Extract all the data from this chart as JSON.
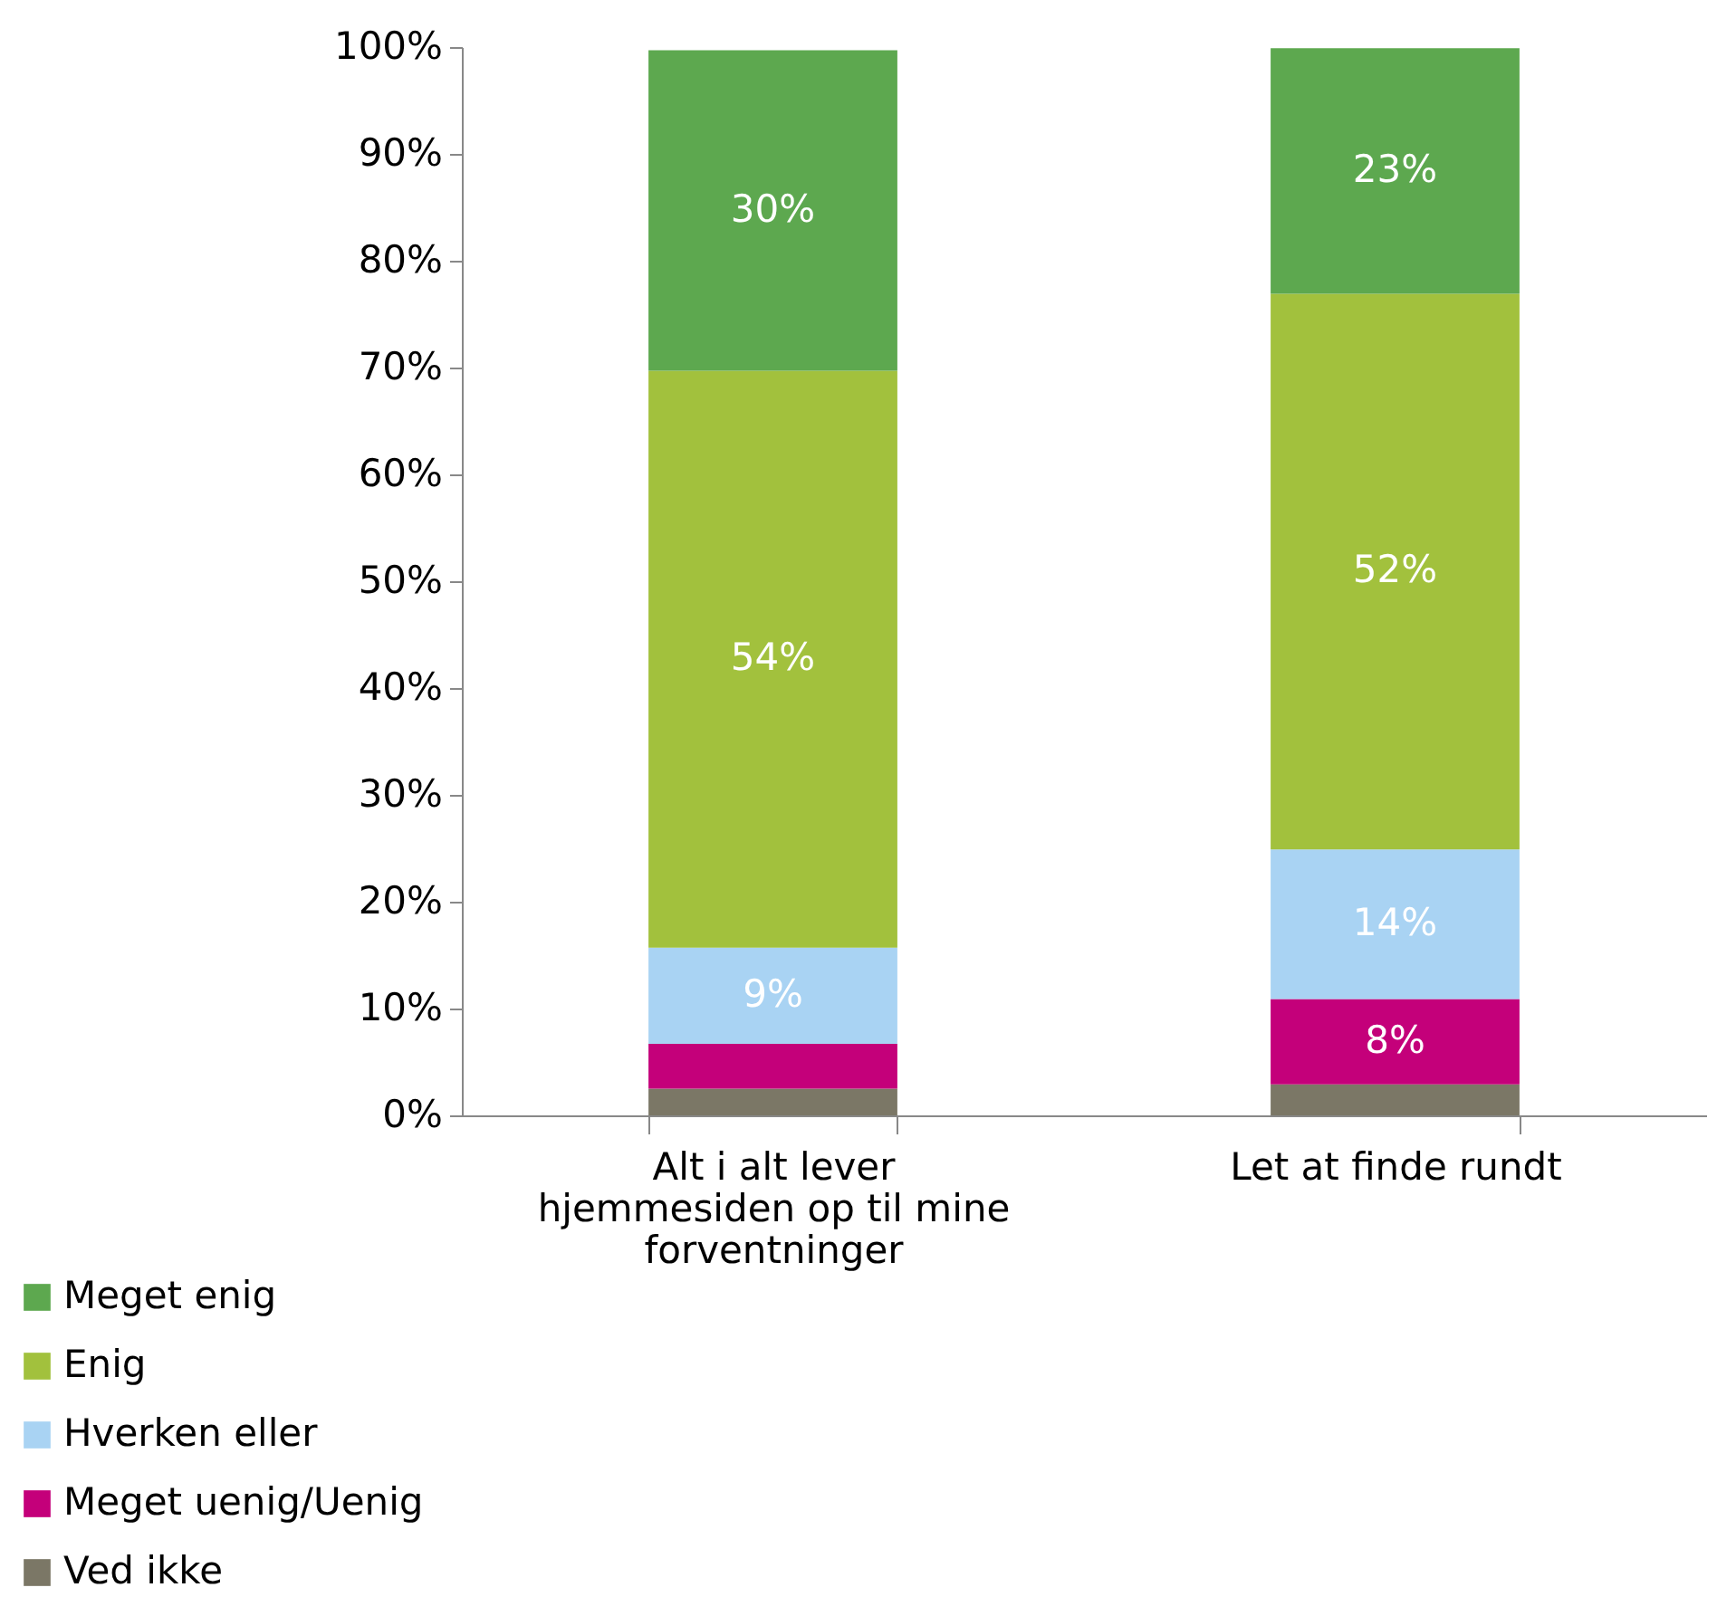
{
  "chart_data": {
    "type": "bar",
    "stacked": true,
    "categories": [
      "Alt i alt lever hjemmesiden op til mine forventninger",
      "Let at finde rundt"
    ],
    "series": [
      {
        "name": "Ved ikke",
        "color": "#7b7766",
        "values": [
          2.5,
          2.9
        ],
        "value_labels": [
          null,
          null
        ]
      },
      {
        "name": "Meget uenig/Uenig",
        "color": "#c4007a",
        "values": [
          4.2,
          8
        ],
        "value_labels": [
          null,
          "8%"
        ]
      },
      {
        "name": "Hverken eller",
        "color": "#a9d3f3",
        "values": [
          9,
          14
        ],
        "value_labels": [
          "9%",
          "14%"
        ]
      },
      {
        "name": "Enig",
        "color": "#a2c13d",
        "values": [
          54,
          52
        ],
        "value_labels": [
          "54%",
          "52%"
        ]
      },
      {
        "name": "Meget enig",
        "color": "#5da84f",
        "values": [
          30,
          23
        ],
        "value_labels": [
          "30%",
          "23%"
        ]
      }
    ],
    "ylim": [
      0,
      100
    ],
    "yticks": [
      {
        "value": 0,
        "label": "0%"
      },
      {
        "value": 10,
        "label": "10%"
      },
      {
        "value": 20,
        "label": "20%"
      },
      {
        "value": 30,
        "label": "30%"
      },
      {
        "value": 40,
        "label": "40%"
      },
      {
        "value": 50,
        "label": "50%"
      },
      {
        "value": 60,
        "label": "60%"
      },
      {
        "value": 70,
        "label": "70%"
      },
      {
        "value": 80,
        "label": "80%"
      },
      {
        "value": 90,
        "label": "90%"
      },
      {
        "value": 100,
        "label": "100%"
      }
    ],
    "grid": false,
    "legend": "bottom left"
  }
}
